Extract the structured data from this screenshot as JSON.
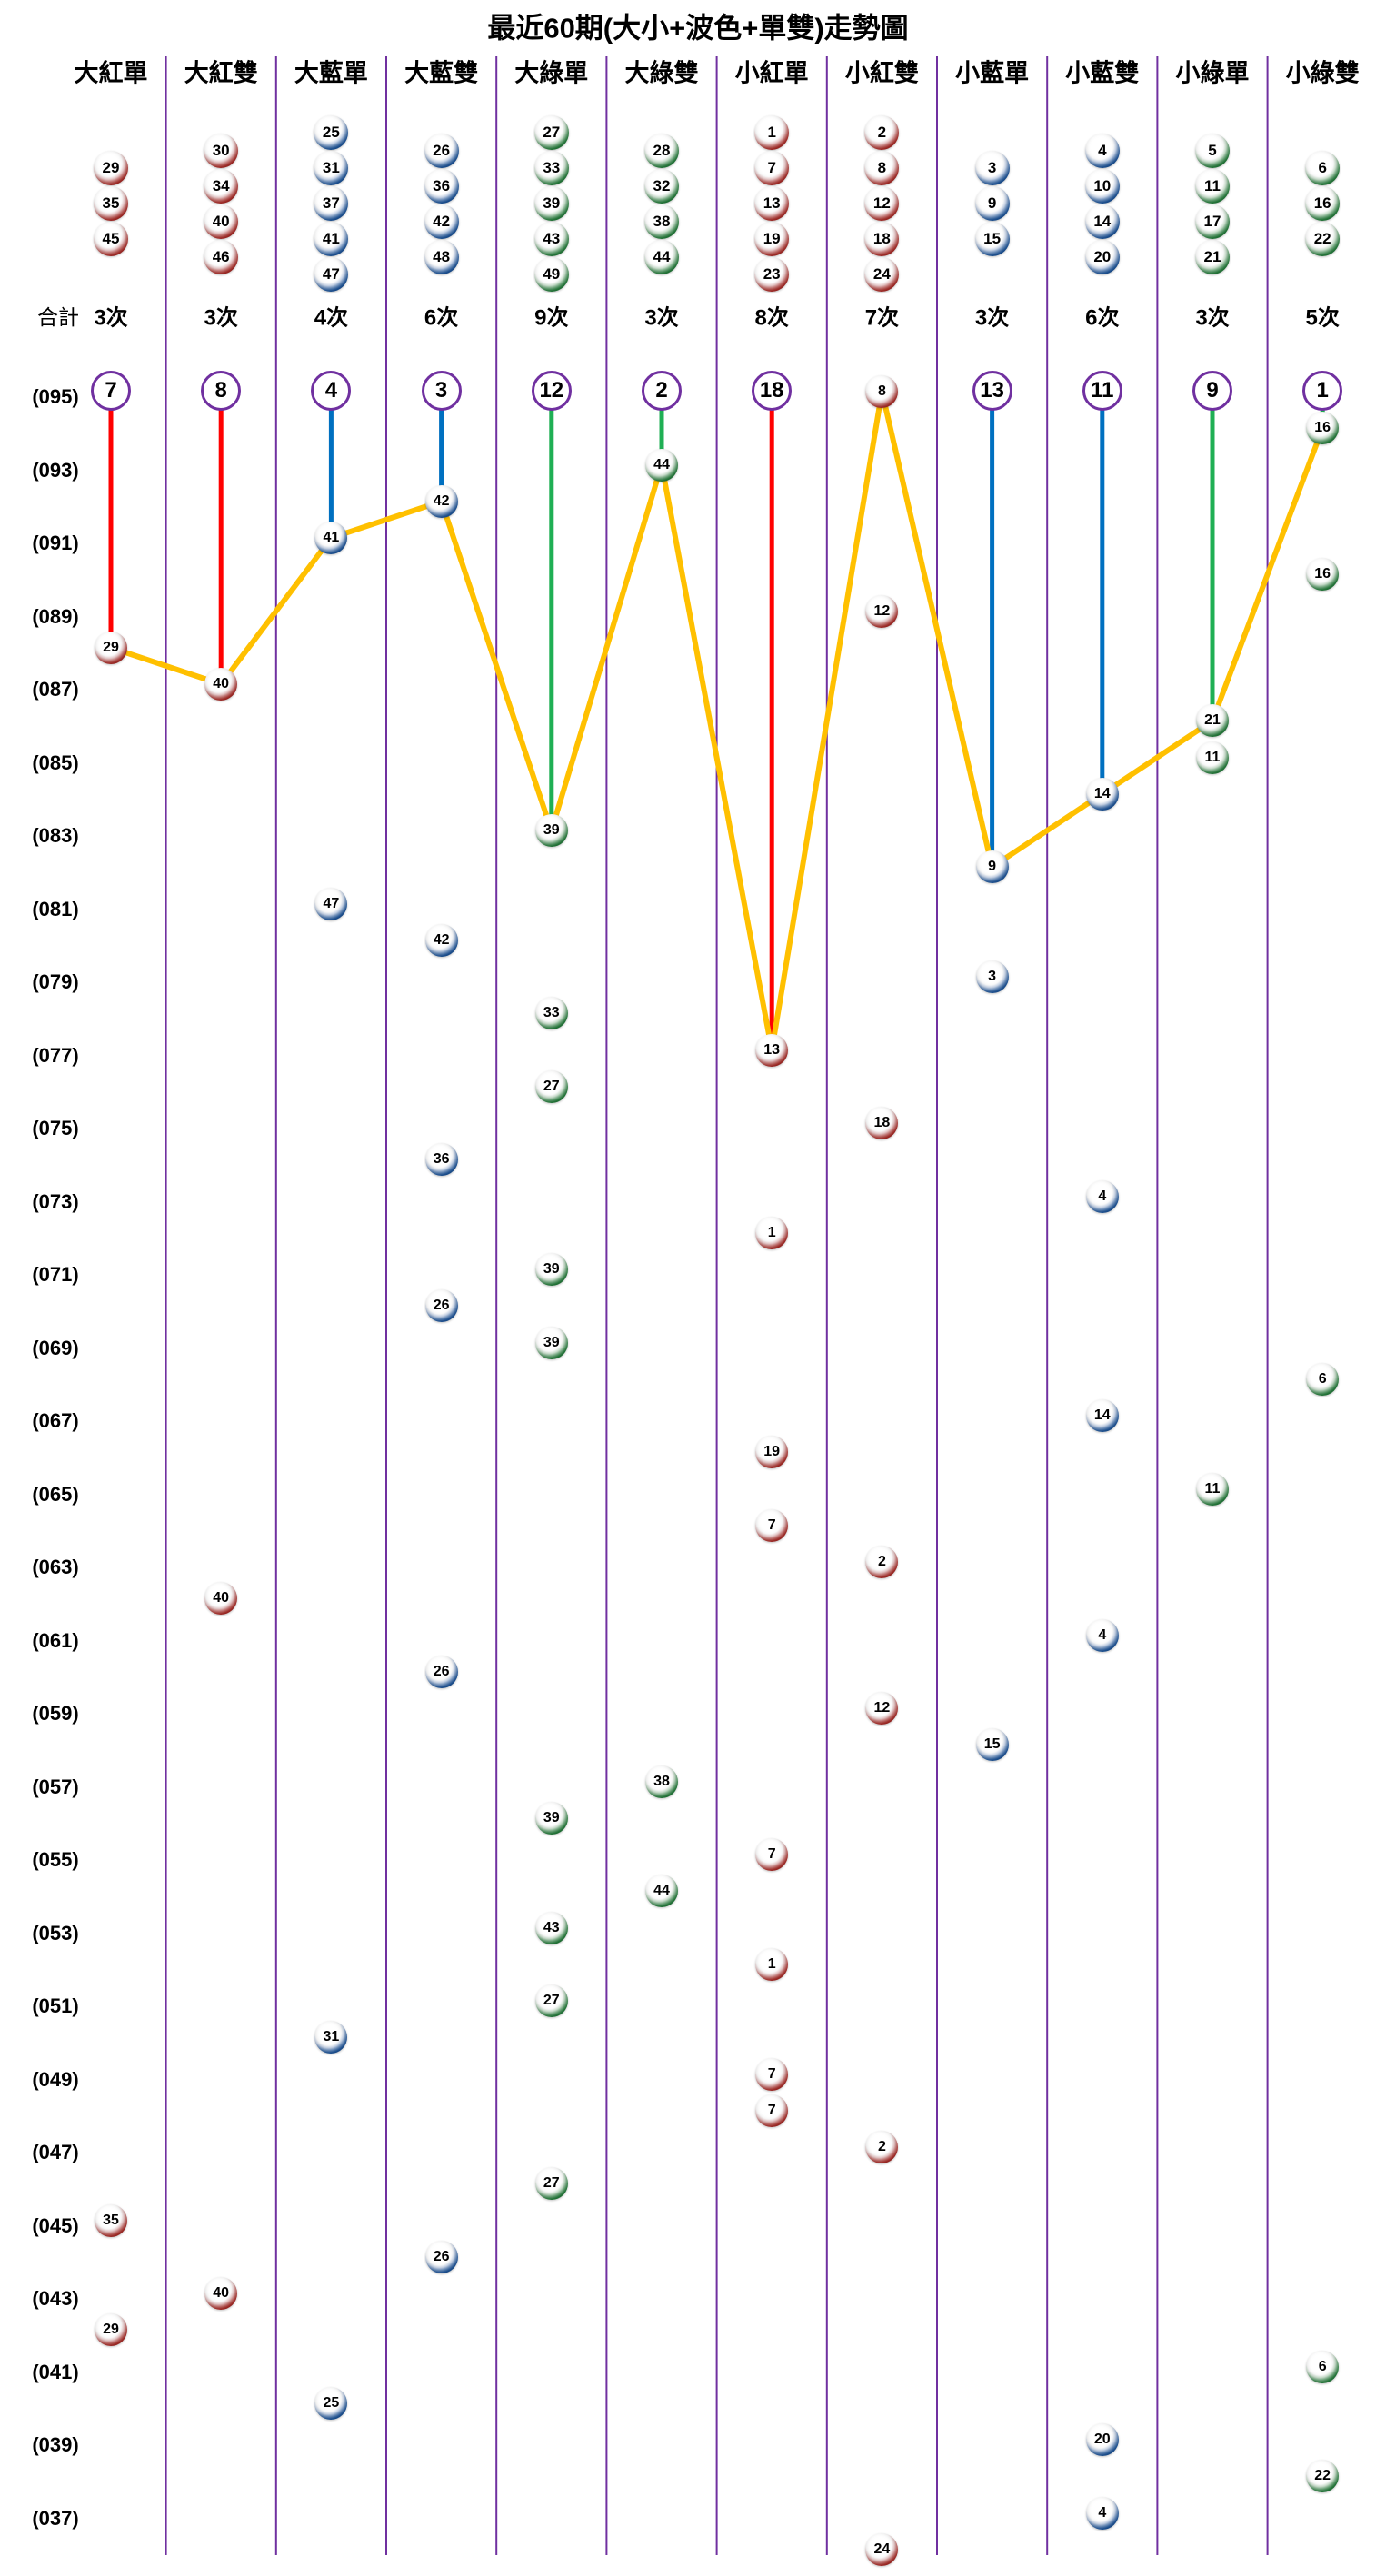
{
  "title": "最近60期(大小+波色+單雙)走勢圖",
  "summary_label": "合計",
  "columns": [
    {
      "name": "大紅單",
      "group": "red",
      "members": [
        29,
        35,
        45
      ],
      "count": "3次",
      "miss": "7",
      "current": false,
      "history": [
        [
          88,
          29
        ],
        [
          45,
          35
        ],
        [
          42,
          29
        ]
      ]
    },
    {
      "name": "大紅雙",
      "group": "red",
      "members": [
        30,
        34,
        40,
        46
      ],
      "count": "3次",
      "miss": "8",
      "current": false,
      "history": [
        [
          87,
          40
        ],
        [
          62,
          40
        ],
        [
          43,
          40
        ]
      ]
    },
    {
      "name": "大藍單",
      "group": "blue",
      "members": [
        25,
        31,
        37,
        41,
        47
      ],
      "count": "4次",
      "miss": "4",
      "current": false,
      "history": [
        [
          91,
          41
        ],
        [
          81,
          47
        ],
        [
          50,
          31
        ],
        [
          40,
          25
        ]
      ]
    },
    {
      "name": "大藍雙",
      "group": "blue",
      "members": [
        26,
        36,
        42,
        48
      ],
      "count": "6次",
      "miss": "3",
      "current": false,
      "history": [
        [
          92,
          42
        ],
        [
          80,
          42
        ],
        [
          74,
          36
        ],
        [
          70,
          26
        ],
        [
          60,
          26
        ],
        [
          44,
          26
        ]
      ]
    },
    {
      "name": "大綠單",
      "group": "green",
      "members": [
        27,
        33,
        39,
        43,
        49
      ],
      "count": "9次",
      "miss": "12",
      "current": false,
      "history": [
        [
          83,
          39
        ],
        [
          78,
          33
        ],
        [
          76,
          27
        ],
        [
          71,
          39
        ],
        [
          69,
          39
        ],
        [
          56,
          39
        ],
        [
          53,
          43
        ],
        [
          51,
          27
        ],
        [
          46,
          27
        ]
      ]
    },
    {
      "name": "大綠雙",
      "group": "green",
      "members": [
        28,
        32,
        38,
        44
      ],
      "count": "3次",
      "miss": "2",
      "current": false,
      "history": [
        [
          93,
          44
        ],
        [
          57,
          38
        ],
        [
          54,
          44
        ]
      ]
    },
    {
      "name": "小紅單",
      "group": "red",
      "members": [
        1,
        7,
        13,
        19,
        23
      ],
      "count": "8次",
      "miss": "18",
      "current": false,
      "history": [
        [
          77,
          13
        ],
        [
          72,
          1
        ],
        [
          66,
          19
        ],
        [
          64,
          7
        ],
        [
          55,
          7
        ],
        [
          52,
          1
        ],
        [
          49,
          7
        ],
        [
          48,
          7
        ]
      ]
    },
    {
      "name": "小紅雙",
      "group": "red",
      "members": [
        2,
        8,
        12,
        18,
        24
      ],
      "count": "7次",
      "miss": null,
      "current": true,
      "history": [
        [
          95,
          8
        ],
        [
          89,
          12
        ],
        [
          75,
          18
        ],
        [
          63,
          2
        ],
        [
          59,
          12
        ],
        [
          47,
          2
        ],
        [
          36,
          24
        ]
      ]
    },
    {
      "name": "小藍單",
      "group": "blue",
      "members": [
        3,
        9,
        15
      ],
      "count": "3次",
      "miss": "13",
      "current": false,
      "history": [
        [
          82,
          9
        ],
        [
          79,
          3
        ],
        [
          58,
          15
        ]
      ]
    },
    {
      "name": "小藍雙",
      "group": "blue",
      "members": [
        4,
        10,
        14,
        20
      ],
      "count": "6次",
      "miss": "11",
      "current": false,
      "history": [
        [
          84,
          14
        ],
        [
          73,
          4
        ],
        [
          67,
          14
        ],
        [
          61,
          4
        ],
        [
          39,
          20
        ],
        [
          37,
          4
        ]
      ]
    },
    {
      "name": "小綠單",
      "group": "green",
      "members": [
        5,
        11,
        17,
        21
      ],
      "count": "3次",
      "miss": "9",
      "current": false,
      "history": [
        [
          86,
          21
        ],
        [
          85,
          11
        ],
        [
          65,
          11
        ]
      ]
    },
    {
      "name": "小綠雙",
      "group": "green",
      "members": [
        6,
        16,
        22
      ],
      "count": "5次",
      "miss": "1",
      "current": false,
      "history": [
        [
          94,
          16
        ],
        [
          90,
          16
        ],
        [
          68,
          6
        ],
        [
          41,
          6
        ],
        [
          38,
          22
        ]
      ]
    }
  ],
  "row_labels": [
    "(095)",
    "(093)",
    "(091)",
    "(089)",
    "(087)",
    "(085)",
    "(083)",
    "(081)",
    "(079)",
    "(077)",
    "(075)",
    "(073)",
    "(071)",
    "(069)",
    "(067)",
    "(065)",
    "(063)",
    "(061)",
    "(059)",
    "(057)",
    "(055)",
    "(053)",
    "(051)",
    "(049)",
    "(047)",
    "(045)",
    "(043)",
    "(041)",
    "(039)",
    "(037)"
  ],
  "chart_data": {
    "type": "line",
    "title": "最近60期(大小+波色+單雙)走勢圖",
    "categories": [
      "大紅單",
      "大紅雙",
      "大藍單",
      "大藍雙",
      "大綠單",
      "大綠雙",
      "小紅單",
      "小紅雙",
      "小藍單",
      "小藍雙",
      "小綠單",
      "小綠雙"
    ],
    "counts_per_category": [
      3,
      3,
      4,
      6,
      9,
      3,
      8,
      7,
      3,
      6,
      3,
      5
    ],
    "miss_counts": [
      7,
      8,
      4,
      3,
      12,
      2,
      18,
      0,
      13,
      11,
      9,
      1
    ],
    "period_range": [
      36,
      95
    ],
    "trend_latest_period_per_category": [
      88,
      87,
      91,
      92,
      83,
      93,
      77,
      95,
      82,
      84,
      86,
      94
    ],
    "draws": [
      {
        "period": 95,
        "num": 8
      },
      {
        "period": 94,
        "num": 16
      },
      {
        "period": 93,
        "num": 44
      },
      {
        "period": 92,
        "num": 42
      },
      {
        "period": 91,
        "num": 41
      },
      {
        "period": 90,
        "num": 16
      },
      {
        "period": 89,
        "num": 12
      },
      {
        "period": 88,
        "num": 29
      },
      {
        "period": 87,
        "num": 40
      },
      {
        "period": 86,
        "num": 21
      },
      {
        "period": 85,
        "num": 11
      },
      {
        "period": 84,
        "num": 14
      },
      {
        "period": 83,
        "num": 39
      },
      {
        "period": 82,
        "num": 9
      },
      {
        "period": 81,
        "num": 47
      },
      {
        "period": 80,
        "num": 42
      },
      {
        "period": 79,
        "num": 3
      },
      {
        "period": 78,
        "num": 33
      },
      {
        "period": 77,
        "num": 13
      },
      {
        "period": 76,
        "num": 27
      },
      {
        "period": 75,
        "num": 18
      },
      {
        "period": 74,
        "num": 36
      },
      {
        "period": 73,
        "num": 4
      },
      {
        "period": 72,
        "num": 1
      },
      {
        "period": 71,
        "num": 39
      },
      {
        "period": 70,
        "num": 26
      },
      {
        "period": 69,
        "num": 39
      },
      {
        "period": 68,
        "num": 6
      },
      {
        "period": 67,
        "num": 14
      },
      {
        "period": 66,
        "num": 19
      },
      {
        "period": 65,
        "num": 11
      },
      {
        "period": 64,
        "num": 7
      },
      {
        "period": 63,
        "num": 2
      },
      {
        "period": 62,
        "num": 40
      },
      {
        "period": 61,
        "num": 4
      },
      {
        "period": 60,
        "num": 26
      },
      {
        "period": 59,
        "num": 12
      },
      {
        "period": 58,
        "num": 15
      },
      {
        "period": 57,
        "num": 38
      },
      {
        "period": 56,
        "num": 39
      },
      {
        "period": 55,
        "num": 7
      },
      {
        "period": 54,
        "num": 44
      },
      {
        "period": 53,
        "num": 43
      },
      {
        "period": 52,
        "num": 1
      },
      {
        "period": 51,
        "num": 27
      },
      {
        "period": 50,
        "num": 31
      },
      {
        "period": 49,
        "num": 7
      },
      {
        "period": 48,
        "num": 7
      },
      {
        "period": 47,
        "num": 2
      },
      {
        "period": 46,
        "num": 27
      },
      {
        "period": 45,
        "num": 35
      },
      {
        "period": 44,
        "num": 26
      },
      {
        "period": 43,
        "num": 40
      },
      {
        "period": 42,
        "num": 29
      },
      {
        "period": 41,
        "num": 6
      },
      {
        "period": 40,
        "num": 25
      },
      {
        "period": 39,
        "num": 20
      },
      {
        "period": 38,
        "num": 22
      },
      {
        "period": 37,
        "num": 4
      },
      {
        "period": 36,
        "num": 24
      }
    ],
    "legend_position": "none",
    "grid": "vertical-dividers-only"
  },
  "colors": {
    "ball_red": "#c62121",
    "ball_blue": "#1e6bc4",
    "ball_green": "#2fa14d",
    "line_red": "#ff0000",
    "line_blue": "#0070c0",
    "line_green": "#1faf54",
    "trend_yellow": "#ffc000",
    "divider_purple": "#7030a0",
    "circle_purple": "#7030a0",
    "text": "#000000"
  }
}
